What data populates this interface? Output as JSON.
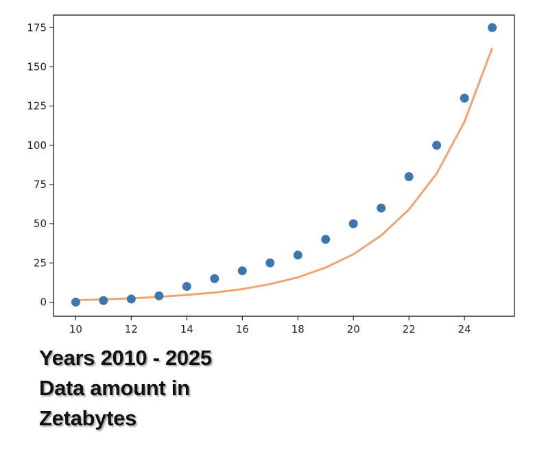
{
  "caption": {
    "line1": "Years 2010 - 2025",
    "line2": "Data amount in",
    "line3": "Zetabytes"
  },
  "chart_data": {
    "type": "scatter",
    "title": "",
    "xlabel": "",
    "ylabel": "",
    "xlim": [
      9.2,
      25.8
    ],
    "ylim": [
      -9,
      183
    ],
    "x_ticks": [
      10,
      12,
      14,
      16,
      18,
      20,
      22,
      24
    ],
    "y_ticks": [
      0,
      25,
      50,
      75,
      100,
      125,
      150,
      175
    ],
    "grid": false,
    "colors": {
      "points": "#3f76ad",
      "fit": "#f0a272",
      "axis": "#000000"
    },
    "series": [
      {
        "kind": "scatter",
        "x": [
          10,
          11,
          12,
          13,
          14,
          15,
          16,
          17,
          18,
          19,
          20,
          21,
          22,
          23,
          24,
          25
        ],
        "y": [
          0,
          1,
          2,
          4,
          10,
          15,
          20,
          25,
          30,
          40,
          50,
          60,
          80,
          100,
          130,
          175
        ]
      },
      {
        "kind": "line",
        "x": [
          10,
          11,
          12,
          13,
          14,
          15,
          16,
          17,
          18,
          19,
          20,
          21,
          22,
          23,
          24,
          25
        ],
        "y": [
          1.2,
          1.7,
          2.4,
          3.3,
          4.6,
          6.1,
          8.3,
          11.5,
          15.8,
          22,
          30.5,
          42.5,
          59,
          82,
          115,
          162
        ]
      }
    ]
  }
}
